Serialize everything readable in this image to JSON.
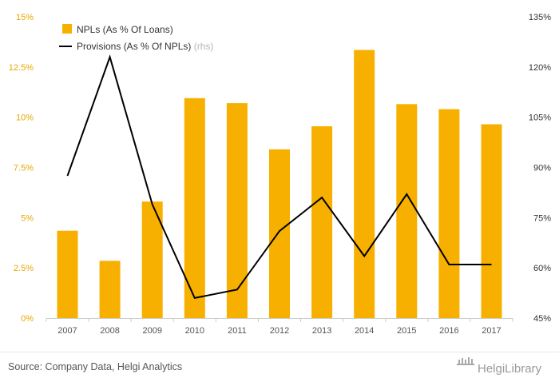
{
  "chart_data": {
    "type": "bar",
    "categories": [
      "2007",
      "2008",
      "2009",
      "2010",
      "2011",
      "2012",
      "2013",
      "2014",
      "2015",
      "2016",
      "2017"
    ],
    "series": [
      {
        "name": "NPLs (As % Of Loans)",
        "type": "bar",
        "axis": "left",
        "values": [
          4.35,
          2.85,
          5.8,
          10.95,
          10.7,
          8.4,
          9.55,
          13.35,
          10.65,
          10.4,
          9.65
        ]
      },
      {
        "name": "Provisions (As % Of NPLs)",
        "axis_hint": "(rhs)",
        "type": "line",
        "axis": "right",
        "values": [
          87.5,
          123,
          79,
          51,
          53.5,
          71,
          81,
          63.5,
          82,
          61,
          61
        ]
      }
    ],
    "y_left": {
      "ylim": [
        0,
        15
      ],
      "ticks": [
        "0%",
        "2.5%",
        "5%",
        "7.5%",
        "10%",
        "12.5%",
        "15%"
      ]
    },
    "y_right": {
      "ylim": [
        45,
        135
      ],
      "ticks": [
        "45%",
        "60%",
        "75%",
        "90%",
        "105%",
        "120%",
        "135%"
      ]
    },
    "legend_position": "top-left",
    "grid": false,
    "colors": {
      "bar": "#f7b000",
      "line": "#000000",
      "left_ticks": "#e8a800",
      "right_ticks": "#333333"
    }
  },
  "footer": {
    "source": "Source: Company Data, Helgi Analytics",
    "brand": "HelgiLibrary"
  }
}
